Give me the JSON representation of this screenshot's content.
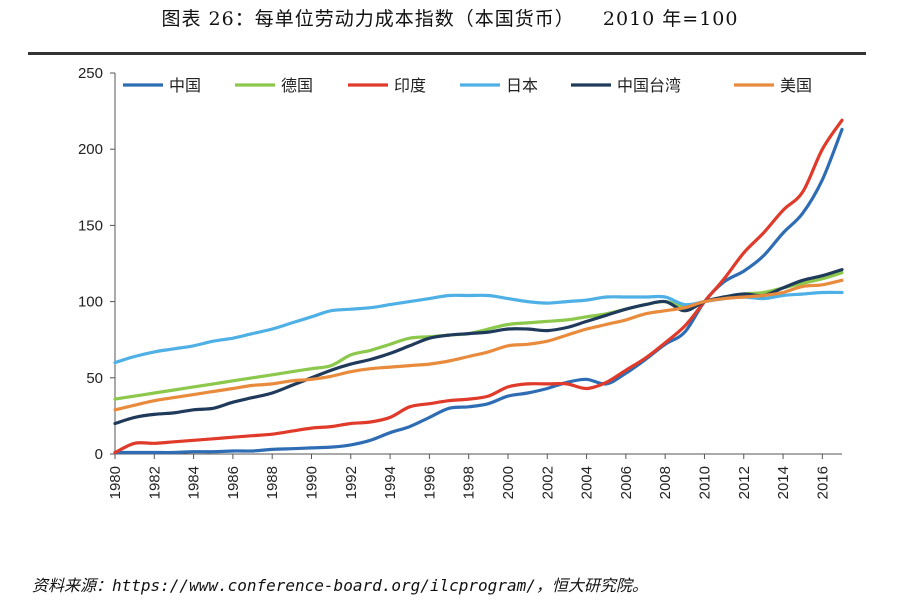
{
  "header": {
    "title": "图表 26：每单位劳动力成本指数（本国货币）    2010 年=100"
  },
  "footer": {
    "source": "资料来源：https://www.conference-board.org/ilcprogram/，恒大研究院。"
  },
  "chart_data": {
    "type": "line",
    "title": "每单位劳动力成本指数（本国货币）",
    "subtitle": "2010 年=100",
    "ylim": [
      0,
      250
    ],
    "yticks": [
      0,
      50,
      100,
      150,
      200,
      250
    ],
    "xlim": [
      1980,
      2017
    ],
    "xticks": [
      1980,
      1982,
      1984,
      1986,
      1988,
      1990,
      1992,
      1994,
      1996,
      1998,
      2000,
      2002,
      2004,
      2006,
      2008,
      2010,
      2012,
      2014,
      2016
    ],
    "grid": false,
    "legend_position": "top",
    "x": [
      1980,
      1981,
      1982,
      1983,
      1984,
      1985,
      1986,
      1987,
      1988,
      1989,
      1990,
      1991,
      1992,
      1993,
      1994,
      1995,
      1996,
      1997,
      1998,
      1999,
      2000,
      2001,
      2002,
      2003,
      2004,
      2005,
      2006,
      2007,
      2008,
      2009,
      2010,
      2011,
      2012,
      2013,
      2014,
      2015,
      2016,
      2017
    ],
    "series": [
      {
        "name": "中国",
        "color": "#2e6db4",
        "values": [
          1,
          1,
          1,
          1,
          1.5,
          1.5,
          2,
          2,
          3,
          3.5,
          4,
          4.5,
          6,
          9,
          14,
          18,
          24,
          30,
          31,
          33,
          38,
          40,
          43,
          47,
          49,
          46,
          53,
          62,
          72,
          80,
          100,
          113,
          120,
          130,
          145,
          158,
          180,
          213
        ]
      },
      {
        "name": "德国",
        "color": "#8cc84b",
        "values": [
          36,
          38,
          40,
          42,
          44,
          46,
          48,
          50,
          52,
          54,
          56,
          58,
          65,
          68,
          72,
          76,
          77,
          78,
          79,
          82,
          85,
          86,
          87,
          88,
          90,
          92,
          95,
          98,
          100,
          97,
          100,
          103,
          105,
          106,
          109,
          112,
          115,
          119
        ]
      },
      {
        "name": "印度",
        "color": "#e03a2a",
        "values": [
          1,
          7,
          7,
          8,
          9,
          10,
          11,
          12,
          13,
          15,
          17,
          18,
          20,
          21,
          24,
          31,
          33,
          35,
          36,
          38,
          44,
          46,
          46,
          46,
          43,
          47,
          55,
          63,
          73,
          84,
          100,
          115,
          132,
          145,
          160,
          172,
          200,
          219
        ]
      },
      {
        "name": "日本",
        "color": "#4fb0e6",
        "values": [
          60,
          64,
          67,
          69,
          71,
          74,
          76,
          79,
          82,
          86,
          90,
          94,
          95,
          96,
          98,
          100,
          102,
          104,
          104,
          104,
          102,
          100,
          99,
          100,
          101,
          103,
          103,
          103,
          103,
          98,
          100,
          102,
          103,
          102,
          104,
          105,
          106,
          106
        ]
      },
      {
        "name": "中国台湾",
        "color": "#1f3a5a",
        "values": [
          20,
          24,
          26,
          27,
          29,
          30,
          34,
          37,
          40,
          45,
          50,
          55,
          59,
          62,
          66,
          71,
          76,
          78,
          79,
          80,
          82,
          82,
          81,
          83,
          87,
          91,
          95,
          98,
          100,
          94,
          100,
          103,
          105,
          104,
          109,
          114,
          117,
          121
        ]
      },
      {
        "name": "美国",
        "color": "#e88b3c",
        "values": [
          29,
          32,
          35,
          37,
          39,
          41,
          43,
          45,
          46,
          48,
          49,
          51,
          54,
          56,
          57,
          58,
          59,
          61,
          64,
          67,
          71,
          72,
          74,
          78,
          82,
          85,
          88,
          92,
          94,
          96,
          100,
          102,
          103,
          104,
          106,
          110,
          111,
          114
        ]
      }
    ]
  }
}
